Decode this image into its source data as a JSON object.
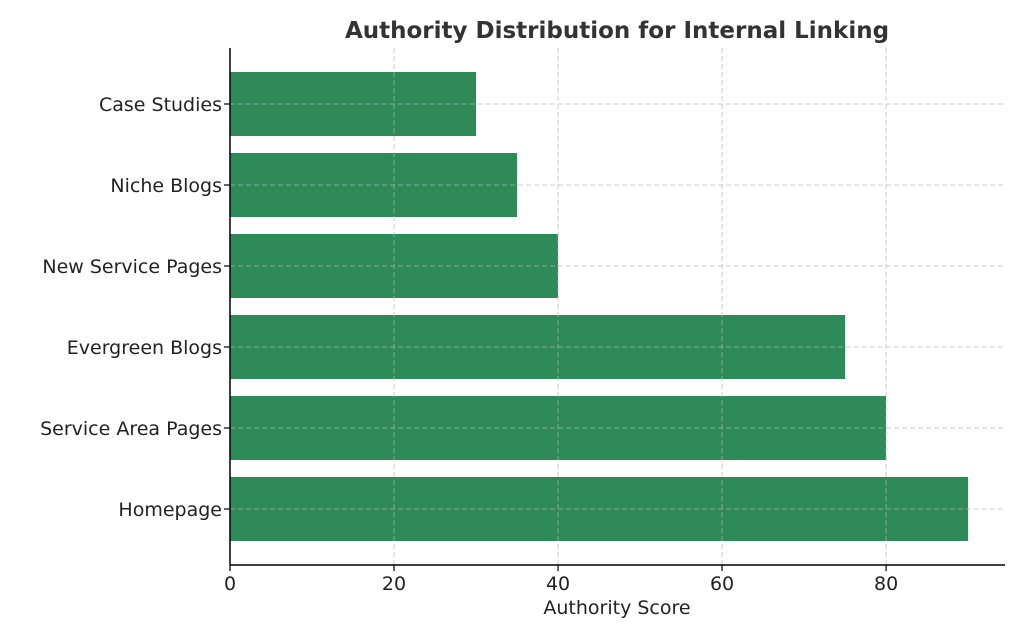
{
  "chart_data": {
    "type": "bar",
    "orientation": "horizontal",
    "title": "Authority Distribution for Internal Linking",
    "xlabel": "Authority Score",
    "ylabel": "",
    "categories": [
      "Homepage",
      "Service Area Pages",
      "Evergreen Blogs",
      "New Service Pages",
      "Niche Blogs",
      "Case Studies"
    ],
    "values": [
      90,
      80,
      75,
      40,
      35,
      30
    ],
    "xlim": [
      0,
      94.5
    ],
    "xticks": [
      0,
      20,
      40,
      60,
      80
    ],
    "grid": true,
    "bar_color": "#2e8b57"
  }
}
